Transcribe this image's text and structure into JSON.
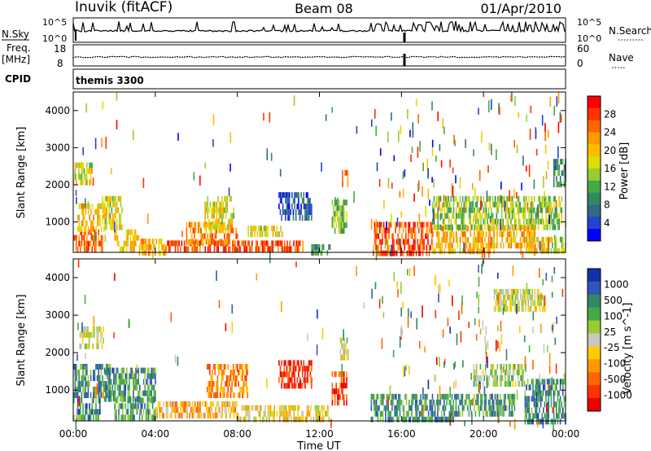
{
  "header": {
    "station": "Inuvik (fitACF)",
    "beam": "Beam 08",
    "date": "01/Apr/2010"
  },
  "strips": {
    "nsky_label": "N.Sky",
    "nsky_ticks": [
      "10^5",
      "10^0"
    ],
    "nsearch_label": "N.Search",
    "nsearch_ticks": [
      "10^5",
      "10^0"
    ],
    "freq_label": "Freq.",
    "freq_unit": "[MHz]",
    "freq_ticks": [
      "18",
      "8"
    ],
    "nave_label": "Nave",
    "nave_ticks": [
      "60",
      "0"
    ],
    "cpid_label": "CPID",
    "cpid_value": "themis 3300"
  },
  "x_axis": {
    "label": "Time UT",
    "ticks": [
      "00:00",
      "04:00",
      "08:00",
      "12:00",
      "16:00",
      "20:00",
      "00:00"
    ],
    "range_hours": [
      0,
      24
    ]
  },
  "chart_data": [
    {
      "type": "heatmap",
      "panel": "power",
      "ylabel": "Slant Range [km]",
      "y_ticks": [
        1000,
        2000,
        3000,
        4000
      ],
      "ylim": [
        180,
        4500
      ],
      "colorbar_label": "Power [dB]",
      "colorbar_ticks": [
        "28",
        "24",
        "20",
        "16",
        "12",
        "8",
        "4"
      ],
      "colorbar_colors": [
        "#ff0000",
        "#ff3300",
        "#ff6600",
        "#ff9900",
        "#ffbb00",
        "#dddd00",
        "#99cc33",
        "#44aa44",
        "#338866",
        "#336688",
        "#2244cc",
        "#0000ff"
      ],
      "regions": [
        {
          "t": [
            0.0,
            1.4
          ],
          "r": [
            200,
            800
          ],
          "level": 0.82
        },
        {
          "t": [
            0.2,
            1.6
          ],
          "r": [
            800,
            1500
          ],
          "level": 0.65
        },
        {
          "t": [
            0.0,
            0.9
          ],
          "r": [
            2100,
            2600
          ],
          "level": 0.55
        },
        {
          "t": [
            1.4,
            2.4
          ],
          "r": [
            900,
            1700
          ],
          "level": 0.55
        },
        {
          "t": [
            2.0,
            3.2
          ],
          "r": [
            250,
            800
          ],
          "level": 0.6
        },
        {
          "t": [
            3.2,
            4.5
          ],
          "r": [
            200,
            550
          ],
          "level": 0.7
        },
        {
          "t": [
            4.5,
            11.2
          ],
          "r": [
            200,
            500
          ],
          "level": 0.88
        },
        {
          "t": [
            5.5,
            8.0
          ],
          "r": [
            500,
            1000
          ],
          "level": 0.75
        },
        {
          "t": [
            6.4,
            7.8
          ],
          "r": [
            900,
            1700
          ],
          "level": 0.55
        },
        {
          "t": [
            8.5,
            10.2
          ],
          "r": [
            600,
            900
          ],
          "level": 0.55
        },
        {
          "t": [
            10.0,
            11.6
          ],
          "r": [
            1100,
            1800
          ],
          "level": 0.15
        },
        {
          "t": [
            12.6,
            13.3
          ],
          "r": [
            800,
            1600
          ],
          "level": 0.4
        },
        {
          "t": [
            13.1,
            13.4
          ],
          "r": [
            2000,
            2400
          ],
          "level": 0.7
        },
        {
          "t": [
            11.6,
            12.6
          ],
          "r": [
            200,
            400
          ],
          "level": 0.3
        },
        {
          "t": [
            14.6,
            17.5
          ],
          "r": [
            200,
            1000
          ],
          "level": 0.85
        },
        {
          "t": [
            17.5,
            20.5
          ],
          "r": [
            200,
            900
          ],
          "level": 0.65
        },
        {
          "t": [
            17.5,
            23.8
          ],
          "r": [
            900,
            1700
          ],
          "level": 0.45
        },
        {
          "t": [
            20.5,
            22.5
          ],
          "r": [
            300,
            900
          ],
          "level": 0.7
        },
        {
          "t": [
            22.0,
            24.0
          ],
          "r": [
            200,
            600
          ],
          "level": 0.55
        },
        {
          "t": [
            23.4,
            24.0
          ],
          "r": [
            2000,
            2700
          ],
          "level": 0.3
        }
      ]
    },
    {
      "type": "heatmap",
      "panel": "velocity",
      "ylabel": "Slant Range [km]",
      "y_ticks": [
        1000,
        2000,
        3000,
        4000
      ],
      "ylim": [
        180,
        4500
      ],
      "colorbar_label": "Velocity [m s^-1]",
      "colorbar_ticks": [
        "1000",
        "500",
        "100",
        "25",
        "-25",
        "-100",
        "-500",
        "-1000"
      ],
      "colorbar_colors": [
        "#1133aa",
        "#3355bb",
        "#338866",
        "#44aa44",
        "#99cc33",
        "#c8c8c0",
        "#ffcc00",
        "#ff9900",
        "#ff6600",
        "#ff3300",
        "#ee0000"
      ],
      "regions": [
        {
          "t": [
            0.0,
            1.3
          ],
          "r": [
            200,
            800
          ],
          "level": 0.8
        },
        {
          "t": [
            0.0,
            1.8
          ],
          "r": [
            800,
            1700
          ],
          "level": 0.78
        },
        {
          "t": [
            0.3,
            1.5
          ],
          "r": [
            2100,
            2700
          ],
          "level": 0.5
        },
        {
          "t": [
            1.5,
            4.0
          ],
          "r": [
            800,
            1600
          ],
          "level": 0.78
        },
        {
          "t": [
            2.0,
            4.0
          ],
          "r": [
            200,
            800
          ],
          "level": 0.75
        },
        {
          "t": [
            4.0,
            8.0
          ],
          "r": [
            300,
            700
          ],
          "level": 0.35
        },
        {
          "t": [
            6.5,
            8.5
          ],
          "r": [
            800,
            1700
          ],
          "level": 0.25
        },
        {
          "t": [
            8.0,
            12.5
          ],
          "r": [
            200,
            600
          ],
          "level": 0.45
        },
        {
          "t": [
            10.0,
            11.6
          ],
          "r": [
            1100,
            1800
          ],
          "level": 0.05
        },
        {
          "t": [
            12.6,
            13.3
          ],
          "r": [
            700,
            1500
          ],
          "level": 0.1
        },
        {
          "t": [
            13.0,
            13.4
          ],
          "r": [
            1900,
            2400
          ],
          "level": 0.5
        },
        {
          "t": [
            14.5,
            18.5
          ],
          "r": [
            200,
            900
          ],
          "level": 0.78
        },
        {
          "t": [
            18.5,
            21.5
          ],
          "r": [
            300,
            900
          ],
          "level": 0.75
        },
        {
          "t": [
            19.5,
            22.0
          ],
          "r": [
            1100,
            1700
          ],
          "level": 0.6
        },
        {
          "t": [
            22.0,
            24.0
          ],
          "r": [
            200,
            1300
          ],
          "level": 0.8
        },
        {
          "t": [
            20.5,
            23.0
          ],
          "r": [
            3100,
            3700
          ],
          "level": 0.5
        }
      ]
    }
  ]
}
